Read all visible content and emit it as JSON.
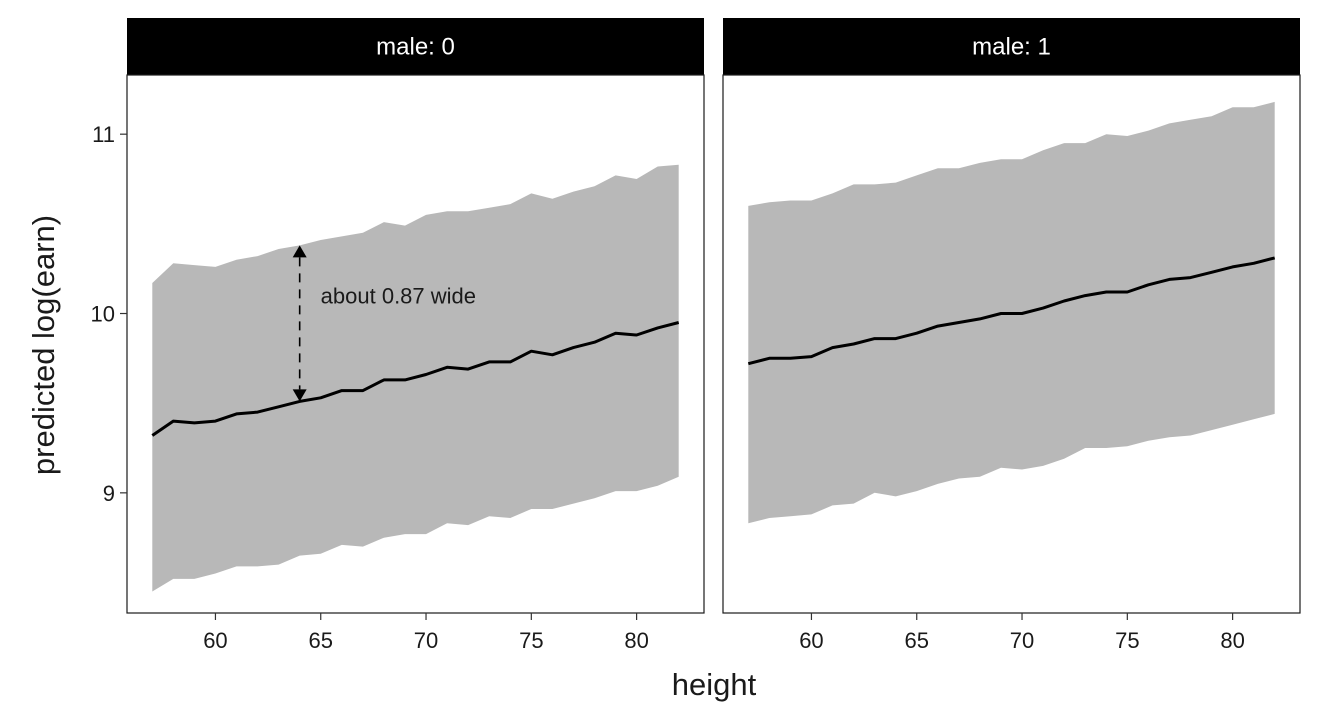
{
  "chart_data": {
    "type": "line",
    "xlabel": "height",
    "ylabel": "predicted log(earn)",
    "xlim": [
      55.8,
      83.2
    ],
    "ylim": [
      8.33,
      11.33
    ],
    "x_ticks": [
      60,
      65,
      70,
      75,
      80
    ],
    "x_tick_labels": [
      "60",
      "65",
      "70",
      "75",
      "80"
    ],
    "y_ticks": [
      9,
      10,
      11
    ],
    "y_tick_labels": [
      "9",
      "10",
      "11"
    ],
    "grid": false,
    "colors": {
      "band": "#b8b8b8",
      "line": "#000000",
      "strip": "#000000",
      "strip_text": "#ffffff"
    },
    "x": [
      57,
      58,
      59,
      60,
      61,
      62,
      63,
      64,
      65,
      66,
      67,
      68,
      69,
      70,
      71,
      72,
      73,
      74,
      75,
      76,
      77,
      78,
      79,
      80,
      81,
      82
    ],
    "panels": [
      {
        "strip_label": "male: 0",
        "series": [
          {
            "kind": "line",
            "values": [
              9.32,
              9.4,
              9.39,
              9.4,
              9.44,
              9.45,
              9.48,
              9.51,
              9.53,
              9.57,
              9.57,
              9.63,
              9.63,
              9.66,
              9.7,
              9.69,
              9.73,
              9.73,
              9.79,
              9.77,
              9.81,
              9.84,
              9.89,
              9.88,
              9.92,
              9.95
            ]
          },
          {
            "kind": "band_lower",
            "values": [
              8.45,
              8.52,
              8.52,
              8.55,
              8.59,
              8.59,
              8.6,
              8.65,
              8.66,
              8.71,
              8.7,
              8.75,
              8.77,
              8.77,
              8.83,
              8.82,
              8.87,
              8.86,
              8.91,
              8.91,
              8.94,
              8.97,
              9.01,
              9.01,
              9.04,
              9.09
            ]
          },
          {
            "kind": "band_upper",
            "values": [
              10.17,
              10.28,
              10.27,
              10.26,
              10.3,
              10.32,
              10.36,
              10.38,
              10.41,
              10.43,
              10.45,
              10.51,
              10.49,
              10.55,
              10.57,
              10.57,
              10.59,
              10.61,
              10.67,
              10.64,
              10.68,
              10.71,
              10.77,
              10.75,
              10.82,
              10.83
            ]
          }
        ],
        "annotation": {
          "text": "about 0.87 wide",
          "x": 64,
          "y_from": 9.51,
          "y_to": 10.38,
          "text_y": 10.1
        }
      },
      {
        "strip_label": "male: 1",
        "series": [
          {
            "kind": "line",
            "values": [
              9.72,
              9.75,
              9.75,
              9.76,
              9.81,
              9.83,
              9.86,
              9.86,
              9.89,
              9.93,
              9.95,
              9.97,
              10.0,
              10.0,
              10.03,
              10.07,
              10.1,
              10.12,
              10.12,
              10.16,
              10.19,
              10.2,
              10.23,
              10.26,
              10.28,
              10.31
            ]
          },
          {
            "kind": "band_lower",
            "values": [
              8.83,
              8.86,
              8.87,
              8.88,
              8.93,
              8.94,
              9.0,
              8.98,
              9.01,
              9.05,
              9.08,
              9.09,
              9.14,
              9.13,
              9.15,
              9.19,
              9.25,
              9.25,
              9.26,
              9.29,
              9.31,
              9.32,
              9.35,
              9.38,
              9.41,
              9.44
            ]
          },
          {
            "kind": "band_upper",
            "values": [
              10.6,
              10.62,
              10.63,
              10.63,
              10.67,
              10.72,
              10.72,
              10.73,
              10.77,
              10.81,
              10.81,
              10.84,
              10.86,
              10.86,
              10.91,
              10.95,
              10.95,
              11.0,
              10.99,
              11.02,
              11.06,
              11.08,
              11.1,
              11.15,
              11.15,
              11.18
            ]
          }
        ]
      }
    ]
  }
}
